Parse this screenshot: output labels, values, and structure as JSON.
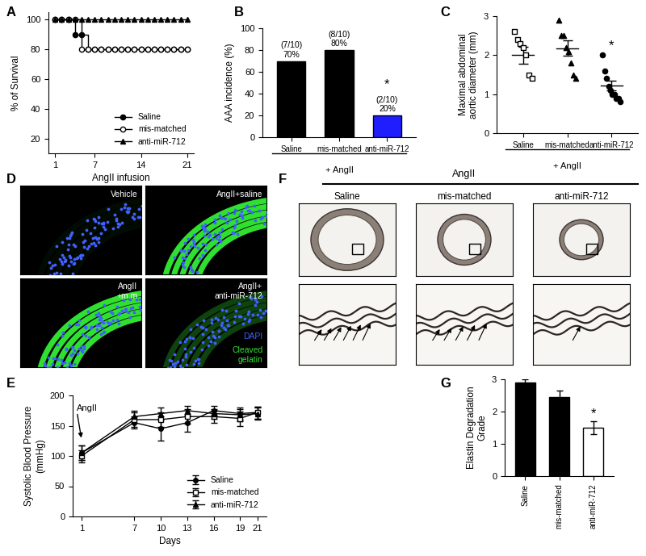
{
  "chart_data": [
    {
      "panel": "A",
      "type": "line",
      "line_style": "steps",
      "x": [
        1,
        2,
        3,
        4,
        5,
        6,
        7,
        8,
        9,
        10,
        11,
        12,
        13,
        14,
        15,
        16,
        17,
        18,
        19,
        20,
        21
      ],
      "series": [
        {
          "name": "Saline",
          "color": "#000000",
          "marker": "filled_circle",
          "values": [
            100,
            100,
            100,
            90,
            90,
            80,
            80,
            80,
            80,
            80,
            80,
            80,
            80,
            80,
            80,
            80,
            80,
            80,
            80,
            80,
            80
          ]
        },
        {
          "name": "mis-matched",
          "color": "#000000",
          "marker": "open_circle",
          "values": [
            100,
            100,
            100,
            100,
            80,
            80,
            80,
            80,
            80,
            80,
            80,
            80,
            80,
            80,
            80,
            80,
            80,
            80,
            80,
            80,
            80
          ]
        },
        {
          "name": "anti-miR-712",
          "color": "#000000",
          "marker": "filled_triangle",
          "values": [
            100,
            100,
            100,
            100,
            100,
            100,
            100,
            100,
            100,
            100,
            100,
            100,
            100,
            100,
            100,
            100,
            100,
            100,
            100,
            100,
            100
          ]
        }
      ],
      "xlabel": "AngII infusion",
      "ylabel": "% of Survival",
      "xlim": [
        0,
        22
      ],
      "xticks": [
        1,
        7,
        14,
        21
      ],
      "ylim": [
        10,
        105
      ],
      "yticks": [
        20,
        40,
        60,
        80,
        100
      ],
      "legend": "lower right"
    },
    {
      "panel": "B",
      "type": "bar",
      "categories": [
        "Saline",
        "mis-matched",
        "anti-miR-712"
      ],
      "values": [
        70,
        80,
        20
      ],
      "value_labels": [
        "(7/10)\n70%",
        "(8/10)\n80%",
        "(2/10)\n20%"
      ],
      "data_labels": true,
      "colors": [
        "#000000",
        "#000000",
        "#1e1eff"
      ],
      "ylabel": "AAA incidence (%)",
      "xlabel": "+ AngII",
      "ylim": [
        0,
        100
      ],
      "yticks": [
        0,
        20,
        40,
        60,
        80,
        100
      ],
      "annotations": [
        {
          "category": "anti-miR-712",
          "text": "*"
        }
      ]
    },
    {
      "panel": "C",
      "type": "scatter",
      "series": [
        {
          "name": "Saline",
          "color": "#000000",
          "marker": "open_square",
          "values": [
            2.6,
            2.4,
            2.3,
            2.2,
            2.0,
            1.5,
            1.4
          ],
          "mean": 2.0,
          "error": 0.22
        },
        {
          "name": "mis-matched",
          "color": "#000000",
          "marker": "filled_triangle",
          "values": [
            2.9,
            2.5,
            2.5,
            2.2,
            2.1,
            1.8,
            1.5,
            1.4
          ],
          "mean": 2.18,
          "error": 0.2
        },
        {
          "name": "anti-miR-712",
          "color": "#000000",
          "marker": "filled_circle",
          "values": [
            2.0,
            1.6,
            1.4,
            1.2,
            1.1,
            1.0,
            1.0,
            0.9,
            0.9,
            0.8
          ],
          "mean": 1.22,
          "error": 0.12
        }
      ],
      "ylabel": "Maximal abdominal\naortic diameter (mm)",
      "xlabel": "+ AngII",
      "ylim": [
        0,
        3
      ],
      "yticks": [
        0,
        1,
        2,
        3
      ],
      "annotations": [
        {
          "category": "anti-miR-712",
          "text": "*"
        }
      ]
    },
    {
      "panel": "E",
      "type": "line",
      "x": [
        1,
        7,
        10,
        13,
        16,
        19,
        21
      ],
      "series": [
        {
          "name": "Saline",
          "color": "#000000",
          "marker": "filled_circle",
          "values": [
            105,
            155,
            145,
            155,
            175,
            170,
            172
          ],
          "errors": [
            12,
            10,
            20,
            15,
            8,
            10,
            10
          ]
        },
        {
          "name": "mis-matched",
          "color": "#000000",
          "marker": "open_square",
          "values": [
            100,
            160,
            160,
            165,
            165,
            162,
            172
          ],
          "errors": [
            10,
            12,
            12,
            12,
            10,
            12,
            10
          ]
        },
        {
          "name": "anti-miR-712",
          "color": "#000000",
          "marker": "filled_triangle",
          "values": [
            105,
            165,
            170,
            175,
            170,
            168,
            170
          ],
          "errors": [
            12,
            10,
            10,
            8,
            8,
            10,
            10
          ]
        }
      ],
      "xlabel": "Days",
      "ylabel": "Systolic Blood Pressure\n(mmHg)",
      "xlim": [
        0,
        22
      ],
      "xticks": [
        1,
        7,
        10,
        13,
        16,
        19,
        21
      ],
      "ylim": [
        0,
        200
      ],
      "yticks": [
        0,
        50,
        100,
        150,
        200
      ],
      "legend": "lower right",
      "annotations": [
        {
          "text": "AngII",
          "x": 1,
          "y": 128
        }
      ]
    },
    {
      "panel": "G",
      "type": "bar",
      "categories": [
        "Saline",
        "mis-matched",
        "anti-miR-712"
      ],
      "values": [
        2.9,
        2.45,
        1.5
      ],
      "errors": [
        0.1,
        0.2,
        0.2
      ],
      "colors": [
        "#000000",
        "#000000",
        "#ffffff"
      ],
      "ylabel": "Elastin Degradation\nGrade",
      "ylim": [
        0,
        3
      ],
      "yticks": [
        0,
        1,
        2,
        3
      ],
      "annotations": [
        {
          "category": "anti-miR-712",
          "text": "*"
        }
      ]
    }
  ],
  "images": [
    {
      "panel": "D",
      "type": "image_grid",
      "images": [
        {
          "label": "Vehicle"
        },
        {
          "label": "AngII+saline"
        },
        {
          "label": "AngII\n+m.m"
        },
        {
          "label": "AngII+\nanti-miR-712"
        }
      ],
      "stains": [
        {
          "name": "DAPI",
          "color": "#4060ff"
        },
        {
          "name": "Cleaved\ngelatin",
          "color": "#30e030"
        }
      ]
    },
    {
      "panel": "F",
      "type": "image_row",
      "title": "AngII",
      "images": [
        {
          "label": "Saline"
        },
        {
          "label": "mis-matched"
        },
        {
          "label": "anti-miR-712"
        }
      ]
    }
  ]
}
